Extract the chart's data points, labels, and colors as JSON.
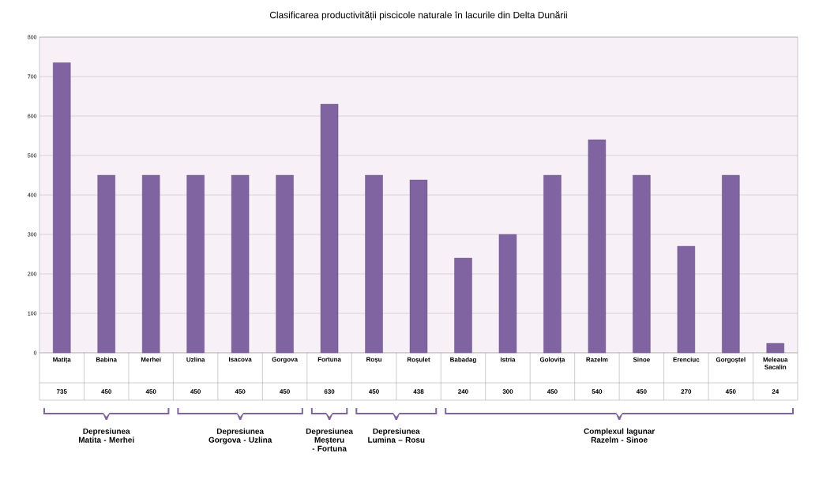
{
  "chart_data": {
    "type": "bar",
    "title": "Clasificarea productivității piscicole naturale în lacurile din Delta Dunării",
    "categories": [
      "Matița",
      "Babina",
      "Merhei",
      "Uzlina",
      "Isacova",
      "Gorgova",
      "Fortuna",
      "Roșu",
      "Roșulet",
      "Babadag",
      "Istria",
      "Golovița",
      "Razelm",
      "Sinoe",
      "Erenciuc",
      "Gorgoștel",
      "Meleaua Sacalin"
    ],
    "values": [
      735,
      450,
      450,
      450,
      450,
      450,
      630,
      450,
      438,
      240,
      300,
      450,
      540,
      450,
      270,
      450,
      24
    ],
    "color": "#8064a2",
    "ylim": [
      0,
      800
    ],
    "yticks": [
      0,
      100,
      200,
      300,
      400,
      500,
      600,
      700,
      800
    ],
    "grid": "y",
    "data_labels": true,
    "annotations": [
      "Depresiunea Matita - Merhei",
      "Depresiunea Gorgova - Uzlina",
      "Depresiunea Meșteru - Fortuna",
      "Depresiunea Lumina – Rosu",
      "Complexul lagunar Razelm - Sinoe"
    ]
  }
}
